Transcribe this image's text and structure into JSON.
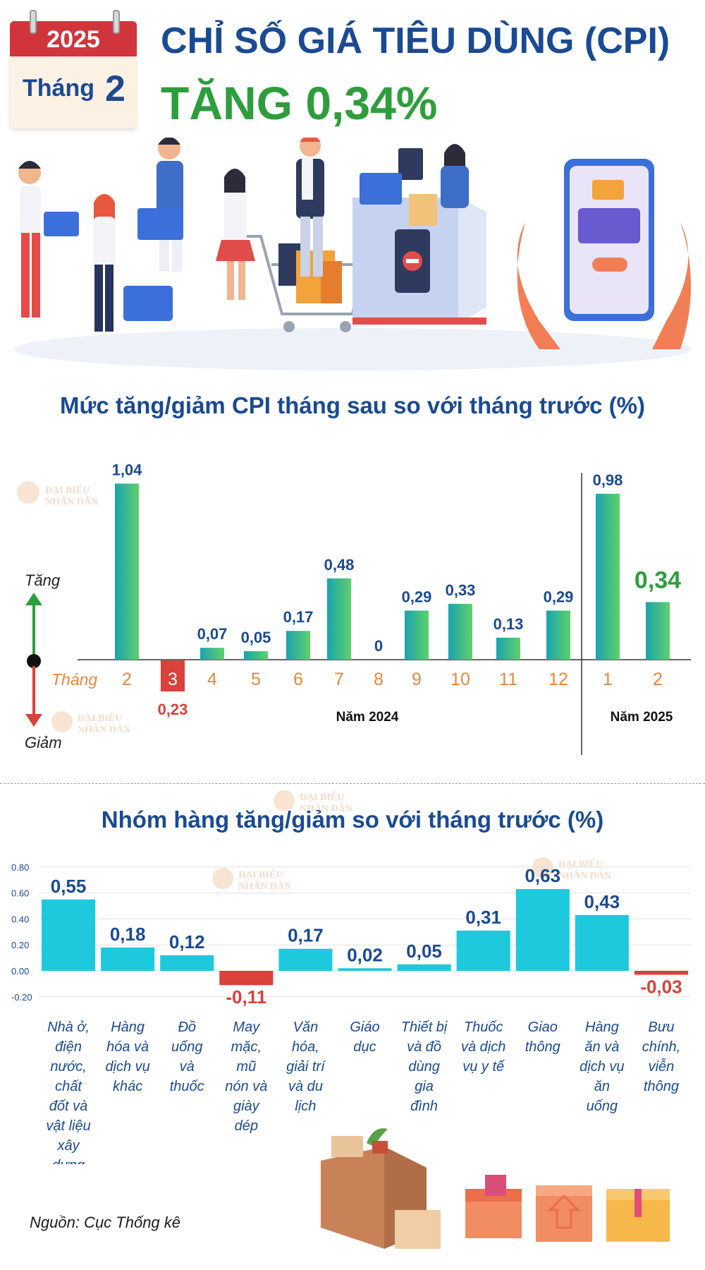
{
  "header": {
    "year": "2025",
    "month_label": "Tháng",
    "month_number": "2",
    "title": "CHỈ SỐ GIÁ TIÊU DÙNG (CPI)",
    "headline": "TĂNG 0,34%"
  },
  "watermark": [
    "ĐẠI BIỂU",
    "NHÂN DÂN"
  ],
  "source": "Nguồn: Cục Thống kê",
  "colors": {
    "blue_text": "#1a4a93",
    "green_text": "#2e9e3c",
    "red": "#d9413a",
    "orange_month": "#e8873f",
    "cyan_bar": "#1ec9dd"
  },
  "chart_data": [
    {
      "type": "bar",
      "title": "Mức tăng/giảm CPI tháng sau so với tháng trước (%)",
      "axis_label_month": "Tháng",
      "up_label": "Tăng",
      "down_label": "Giảm",
      "categories": [
        "2",
        "3",
        "4",
        "5",
        "6",
        "7",
        "8",
        "9",
        "10",
        "11",
        "12",
        "1",
        "2"
      ],
      "values": [
        1.04,
        -0.23,
        0.07,
        0.05,
        0.17,
        0.48,
        0,
        0.29,
        0.33,
        0.13,
        0.29,
        0.98,
        0.34
      ],
      "value_labels": [
        "1,04",
        "0,23",
        "0,07",
        "0,05",
        "0,17",
        "0,48",
        "0",
        "0,29",
        "0,33",
        "0,13",
        "0,29",
        "0,98",
        "0,34"
      ],
      "year_groups": [
        {
          "label": "Năm 2024",
          "categories": [
            "2",
            "3",
            "4",
            "5",
            "6",
            "7",
            "8",
            "9",
            "10",
            "11",
            "12"
          ]
        },
        {
          "label": "Năm 2025",
          "categories": [
            "1",
            "2"
          ]
        }
      ],
      "highlight_index": 12
    },
    {
      "type": "bar",
      "title": "Nhóm hàng tăng/giảm so với tháng trước (%)",
      "categories": [
        "Nhà ở, điện nước, chất đốt và vật liệu xây dựng",
        "Hàng hóa và dịch vụ khác",
        "Đồ uống và thuốc",
        "May mặc, mũ nón và giày dép",
        "Văn hóa, giải trí và du lịch",
        "Giáo dục",
        "Thiết bị và đồ dùng gia đình",
        "Thuốc và dịch vụ y tế",
        "Giao thông",
        "Hàng ăn và dịch vụ ăn uống",
        "Bưu chính, viễn thông"
      ],
      "category_lines": [
        [
          "Nhà ở,",
          "điện",
          "nước,",
          "chất",
          "đốt và",
          "vật liệu",
          "xây",
          "dựng"
        ],
        [
          "Hàng",
          "hóa và",
          "dịch vụ",
          "khác"
        ],
        [
          "Đồ",
          "uống",
          "và",
          "thuốc"
        ],
        [
          "May",
          "mặc,",
          "mũ",
          "nón và",
          "giày",
          "dép"
        ],
        [
          "Văn",
          "hóa,",
          "giải trí",
          "và du",
          "lịch"
        ],
        [
          "Giáo",
          "dục"
        ],
        [
          "Thiết bị",
          "và đồ",
          "dùng",
          "gia",
          "đình"
        ],
        [
          "Thuốc",
          "và dịch",
          "vụ y tế"
        ],
        [
          "Giao",
          "thông"
        ],
        [
          "Hàng",
          "ăn và",
          "dịch vụ",
          "ăn",
          "uống"
        ],
        [
          "Bưu",
          "chính,",
          "viễn",
          "thông"
        ]
      ],
      "values": [
        0.55,
        0.18,
        0.12,
        -0.11,
        0.17,
        0.02,
        0.05,
        0.31,
        0.63,
        0.43,
        -0.03
      ],
      "value_labels": [
        "0,55",
        "0,18",
        "0,12",
        "-0,11",
        "0,17",
        "0,02",
        "0,05",
        "0,31",
        "0,63",
        "0,43",
        "-0,03"
      ],
      "yticks": [
        "0.80",
        "0.60",
        "0.40",
        "0.20",
        "0.00",
        "-0.20"
      ],
      "ylim": [
        -0.2,
        0.8
      ],
      "grid": true
    }
  ]
}
